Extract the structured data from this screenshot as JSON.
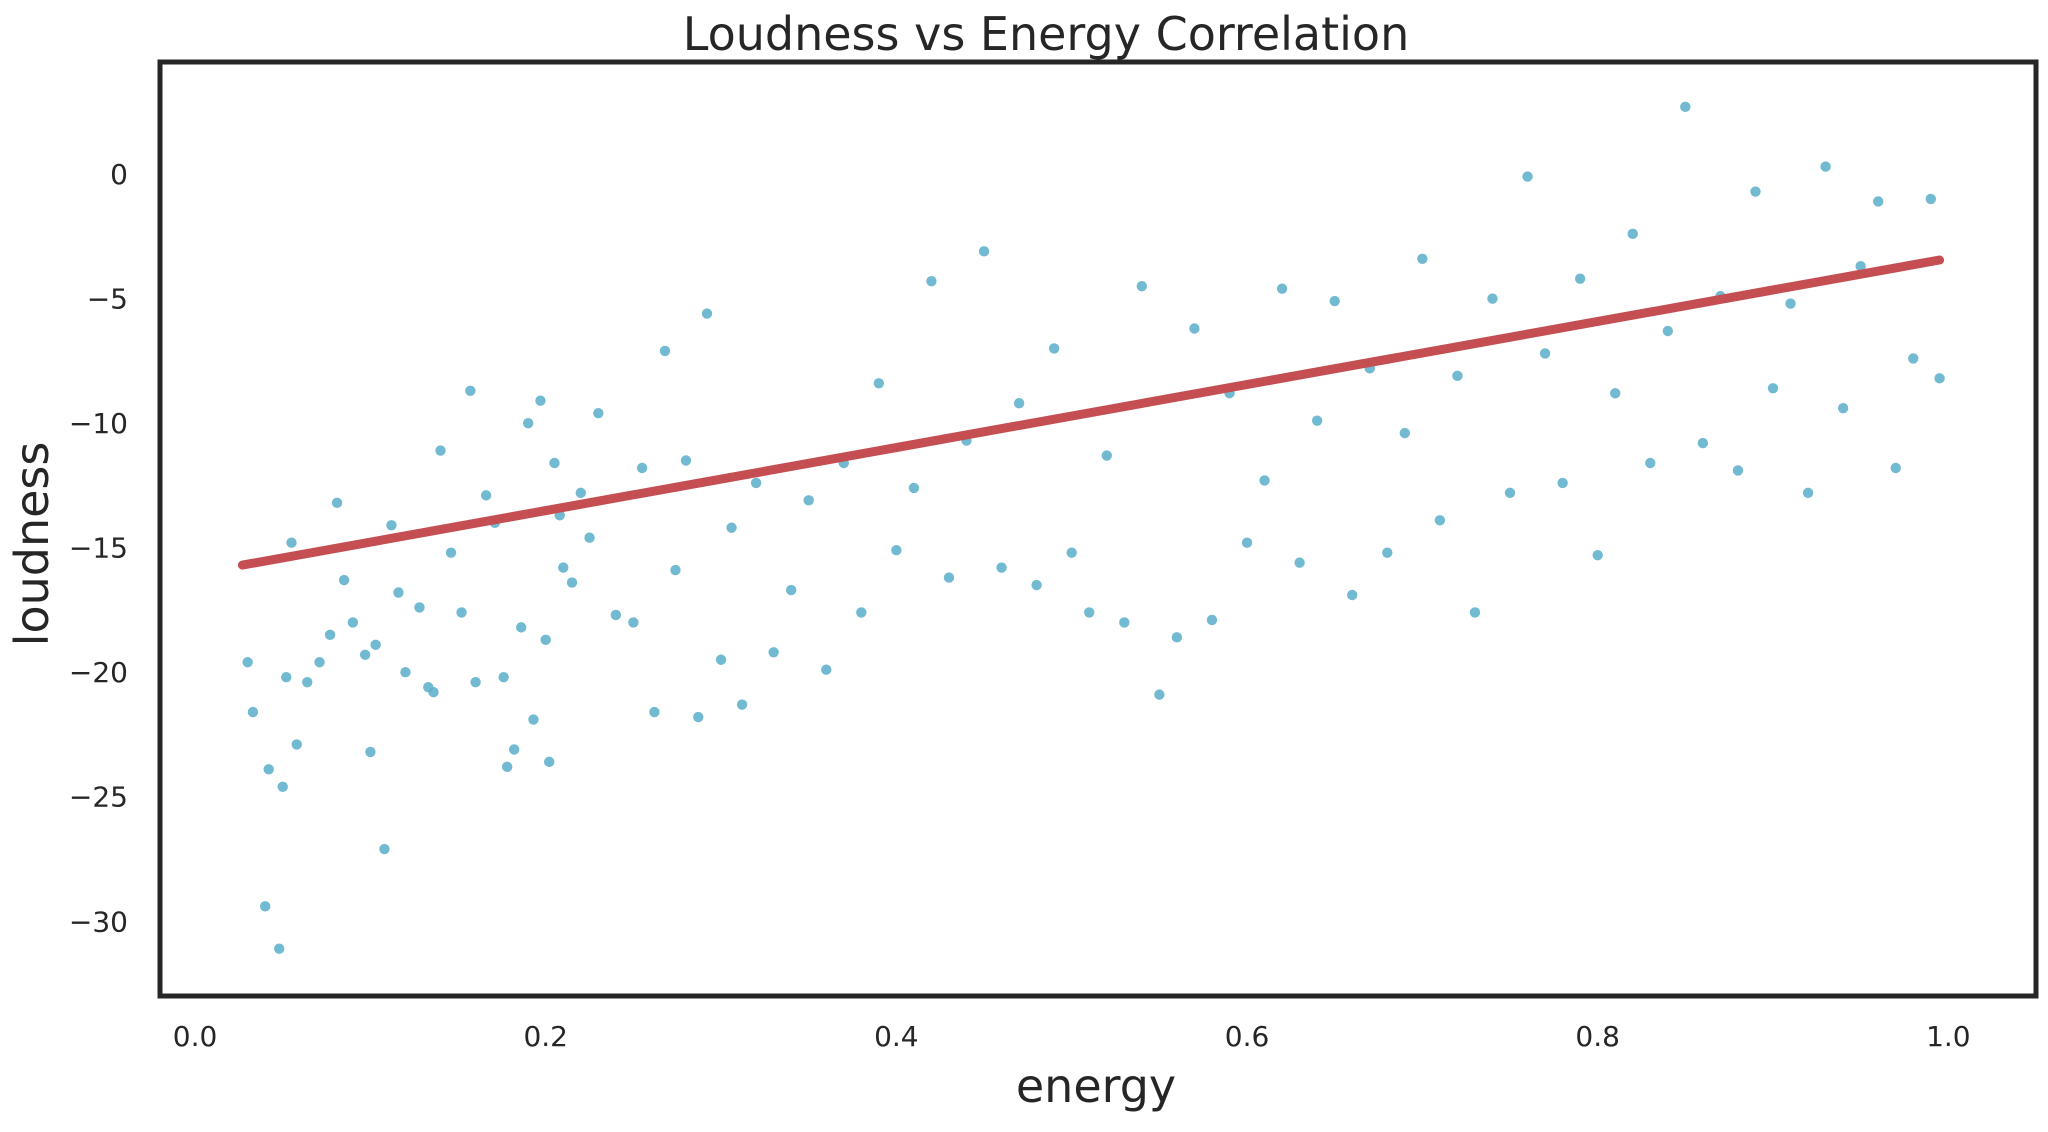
{
  "chart_data": {
    "type": "scatter",
    "title": "Loudness vs Energy Correlation",
    "xlabel": "energy",
    "ylabel": "loudness",
    "xlim": [
      -0.02,
      1.05
    ],
    "ylim": [
      -33.0,
      4.5
    ],
    "x_ticks": [
      0.0,
      0.2,
      0.4,
      0.6,
      0.8,
      1.0
    ],
    "x_tick_labels": [
      "0.0",
      "0.2",
      "0.4",
      "0.6",
      "0.8",
      "1.0"
    ],
    "y_ticks": [
      0,
      -5,
      -10,
      -15,
      -20,
      -25,
      -30
    ],
    "y_tick_labels": [
      "0",
      "−5",
      "−10",
      "−15",
      "−20",
      "−25",
      "−30"
    ],
    "grid": false,
    "point_color": "#5fb0cc",
    "line_color": "#c44e52",
    "regression_line": {
      "x": [
        0.027,
        0.995
      ],
      "y": [
        -15.7,
        -3.45
      ]
    },
    "scatter_points": [
      [
        0.03,
        -19.6
      ],
      [
        0.033,
        -21.6
      ],
      [
        0.04,
        -29.4
      ],
      [
        0.042,
        -23.9
      ],
      [
        0.048,
        -31.1
      ],
      [
        0.05,
        -24.6
      ],
      [
        0.052,
        -20.2
      ],
      [
        0.055,
        -14.8
      ],
      [
        0.058,
        -22.9
      ],
      [
        0.064,
        -20.4
      ],
      [
        0.071,
        -19.6
      ],
      [
        0.077,
        -18.5
      ],
      [
        0.081,
        -13.2
      ],
      [
        0.085,
        -16.3
      ],
      [
        0.09,
        -18.0
      ],
      [
        0.097,
        -19.3
      ],
      [
        0.1,
        -23.2
      ],
      [
        0.103,
        -18.9
      ],
      [
        0.108,
        -27.1
      ],
      [
        0.112,
        -14.1
      ],
      [
        0.116,
        -16.8
      ],
      [
        0.12,
        -20.0
      ],
      [
        0.128,
        -17.4
      ],
      [
        0.133,
        -20.6
      ],
      [
        0.136,
        -20.8
      ],
      [
        0.14,
        -11.1
      ],
      [
        0.146,
        -15.2
      ],
      [
        0.152,
        -17.6
      ],
      [
        0.157,
        -8.7
      ],
      [
        0.16,
        -20.4
      ],
      [
        0.166,
        -12.9
      ],
      [
        0.171,
        -14.0
      ],
      [
        0.176,
        -20.2
      ],
      [
        0.178,
        -23.8
      ],
      [
        0.182,
        -23.1
      ],
      [
        0.186,
        -18.2
      ],
      [
        0.19,
        -10.0
      ],
      [
        0.193,
        -21.9
      ],
      [
        0.197,
        -9.1
      ],
      [
        0.2,
        -18.7
      ],
      [
        0.202,
        -23.6
      ],
      [
        0.205,
        -11.6
      ],
      [
        0.208,
        -13.7
      ],
      [
        0.21,
        -15.8
      ],
      [
        0.215,
        -16.4
      ],
      [
        0.22,
        -12.8
      ],
      [
        0.225,
        -14.6
      ],
      [
        0.23,
        -9.6
      ],
      [
        0.24,
        -17.7
      ],
      [
        0.25,
        -18.0
      ],
      [
        0.255,
        -11.8
      ],
      [
        0.262,
        -21.6
      ],
      [
        0.268,
        -7.1
      ],
      [
        0.274,
        -15.9
      ],
      [
        0.28,
        -11.5
      ],
      [
        0.287,
        -21.8
      ],
      [
        0.292,
        -5.6
      ],
      [
        0.3,
        -19.5
      ],
      [
        0.306,
        -14.2
      ],
      [
        0.312,
        -21.3
      ],
      [
        0.32,
        -12.4
      ],
      [
        0.33,
        -19.2
      ],
      [
        0.34,
        -16.7
      ],
      [
        0.35,
        -13.1
      ],
      [
        0.36,
        -19.9
      ],
      [
        0.37,
        -11.6
      ],
      [
        0.38,
        -17.6
      ],
      [
        0.39,
        -8.4
      ],
      [
        0.4,
        -15.1
      ],
      [
        0.41,
        -12.6
      ],
      [
        0.42,
        -4.3
      ],
      [
        0.43,
        -16.2
      ],
      [
        0.44,
        -10.7
      ],
      [
        0.45,
        -3.1
      ],
      [
        0.46,
        -15.8
      ],
      [
        0.47,
        -9.2
      ],
      [
        0.48,
        -16.5
      ],
      [
        0.49,
        -7.0
      ],
      [
        0.5,
        -15.2
      ],
      [
        0.51,
        -17.6
      ],
      [
        0.52,
        -11.3
      ],
      [
        0.53,
        -18.0
      ],
      [
        0.54,
        -4.5
      ],
      [
        0.55,
        -20.9
      ],
      [
        0.56,
        -18.6
      ],
      [
        0.57,
        -6.2
      ],
      [
        0.58,
        -17.9
      ],
      [
        0.59,
        -8.8
      ],
      [
        0.6,
        -14.8
      ],
      [
        0.61,
        -12.3
      ],
      [
        0.62,
        -4.6
      ],
      [
        0.63,
        -15.6
      ],
      [
        0.64,
        -9.9
      ],
      [
        0.65,
        -5.1
      ],
      [
        0.66,
        -16.9
      ],
      [
        0.67,
        -7.8
      ],
      [
        0.68,
        -15.2
      ],
      [
        0.69,
        -10.4
      ],
      [
        0.7,
        -3.4
      ],
      [
        0.71,
        -13.9
      ],
      [
        0.72,
        -8.1
      ],
      [
        0.73,
        -17.6
      ],
      [
        0.74,
        -5.0
      ],
      [
        0.75,
        -12.8
      ],
      [
        0.76,
        -0.1
      ],
      [
        0.77,
        -7.2
      ],
      [
        0.78,
        -12.4
      ],
      [
        0.79,
        -4.2
      ],
      [
        0.8,
        -15.3
      ],
      [
        0.81,
        -8.8
      ],
      [
        0.82,
        -2.4
      ],
      [
        0.83,
        -11.6
      ],
      [
        0.84,
        -6.3
      ],
      [
        0.85,
        2.7
      ],
      [
        0.86,
        -10.8
      ],
      [
        0.87,
        -4.9
      ],
      [
        0.88,
        -11.9
      ],
      [
        0.89,
        -0.7
      ],
      [
        0.9,
        -8.6
      ],
      [
        0.91,
        -5.2
      ],
      [
        0.92,
        -12.8
      ],
      [
        0.93,
        0.3
      ],
      [
        0.94,
        -9.4
      ],
      [
        0.95,
        -3.7
      ],
      [
        0.96,
        -1.1
      ],
      [
        0.97,
        -11.8
      ],
      [
        0.98,
        -7.4
      ],
      [
        0.99,
        -1.0
      ],
      [
        0.995,
        -8.2
      ]
    ]
  }
}
